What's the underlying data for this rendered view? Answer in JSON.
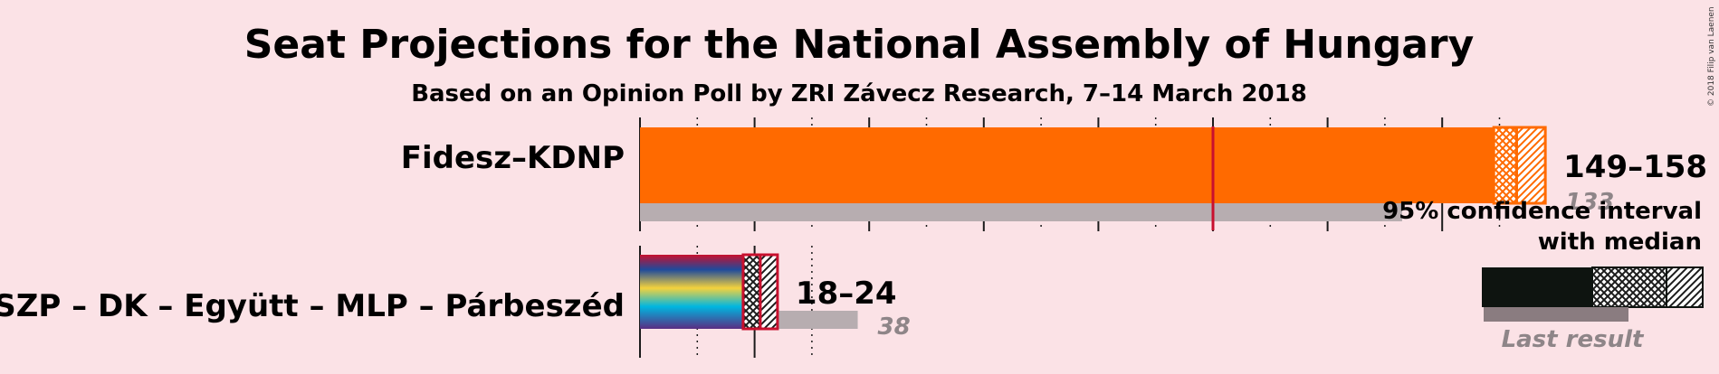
{
  "title": "Seat Projections for the National Assembly of Hungary",
  "subtitle": "Based on an Opinion Poll by ZRI Závecz Research, 7–14 March 2018",
  "copyright": "© 2018 Filip van Laenen",
  "chart_data": {
    "type": "bar",
    "orientation": "horizontal",
    "xlim": [
      0,
      200
    ],
    "majority": 100,
    "categories": [
      "Fidesz–KDNP",
      "MSZP – DK – Együtt – MLP – Párbeszéd"
    ],
    "series": [
      {
        "party": "Fidesz–KDNP",
        "ci_low": 149,
        "median": 153,
        "ci_high": 158,
        "range_label": "149–158",
        "last_result": 133,
        "colors": [
          "#ff6a00"
        ]
      },
      {
        "party": "MSZP – DK – Együtt – MLP – Párbeszéd",
        "ci_low": 18,
        "median": 21,
        "ci_high": 24,
        "range_label": "18–24",
        "last_result": 38,
        "colors": [
          "#c8102e",
          "#1e4a9c",
          "#f4d23c",
          "#00b6e0",
          "#5a2d82"
        ]
      }
    ],
    "legend": {
      "line1": "95% confidence interval",
      "line2": "with median",
      "last_result_label": "Last result",
      "placement": "right"
    },
    "colors": {
      "majority_line": "#c8102e",
      "last_result_bar": "#b7adb0",
      "legend_bar": "#0e1410"
    }
  }
}
